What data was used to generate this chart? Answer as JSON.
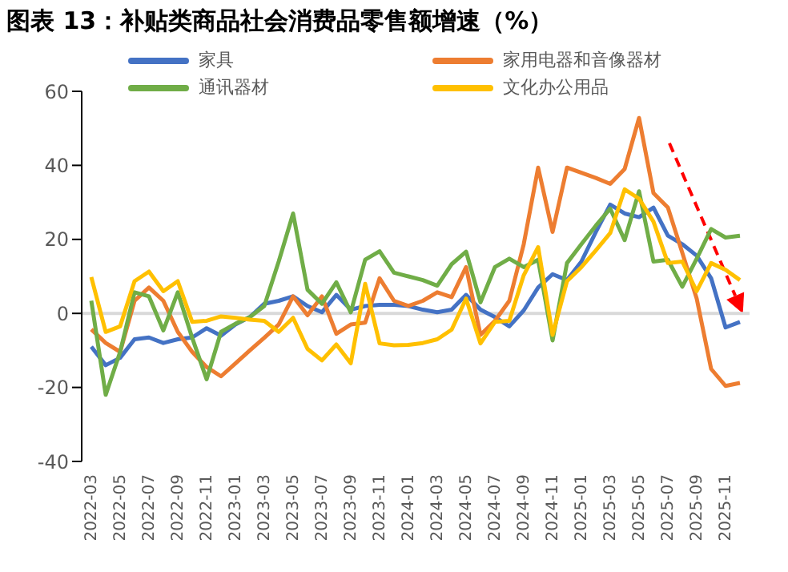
{
  "chart_data": {
    "type": "line",
    "title": "图表 13：补贴类商品社会消费品零售额增速（%）",
    "categories": [
      "2022-03",
      null,
      "2022-05",
      null,
      "2022-07",
      null,
      "2022-09",
      null,
      "2022-11",
      null,
      "2023-01",
      null,
      "2023-03",
      null,
      "2023-05",
      null,
      "2023-07",
      null,
      "2023-09",
      null,
      "2023-11",
      null,
      "2024-01",
      null,
      "2024-03",
      null,
      "2024-05",
      null,
      "2024-07",
      null,
      "2024-09",
      null,
      "2024-11",
      null,
      "2025-01",
      null,
      "2025-03",
      null,
      "2025-05",
      null,
      "2025-07",
      null,
      "2025-09",
      null,
      "2025-11",
      null
    ],
    "series": [
      {
        "name": "家具",
        "color": "#4472c4",
        "values": [
          -9,
          -14,
          -12,
          -7,
          -6.5,
          -8,
          -7,
          -6.5,
          -4,
          -6,
          -3,
          -1,
          2.6,
          3.4,
          4.6,
          2,
          0.3,
          5,
          1,
          2,
          2.3,
          2.3,
          2,
          1,
          0.3,
          1,
          5,
          1,
          -1,
          -3.5,
          0.8,
          7,
          10.6,
          9,
          14,
          22,
          29.4,
          27,
          26,
          28.6,
          21,
          18.7,
          15.6,
          9.5,
          -3.8,
          -2.3
        ]
      },
      {
        "name": "家用电器和音像器材",
        "color": "#ed7d31",
        "values": [
          -4.3,
          -8,
          -10.4,
          3.4,
          7,
          3.4,
          -5,
          -10.4,
          -14.5,
          -17,
          -13.5,
          -10,
          -6.6,
          -3,
          4.6,
          -0.5,
          4.6,
          -5.5,
          -3,
          -2.5,
          9.5,
          3.4,
          2,
          3.4,
          5.7,
          4.4,
          12.5,
          -5.8,
          -2,
          3.4,
          18.7,
          39.4,
          22,
          39.4,
          38,
          36.6,
          35,
          39,
          52.8,
          32.5,
          28.6,
          16.4,
          4,
          -15,
          -19.6,
          -18.8
        ]
      },
      {
        "name": "通讯器材",
        "color": "#70ad47",
        "values": [
          3.4,
          -22,
          -10.4,
          5.7,
          4.6,
          -4.6,
          5.7,
          -6.6,
          -17.8,
          -5,
          -2.8,
          -1,
          2,
          14,
          27,
          6.4,
          2.6,
          8.4,
          0.3,
          14.5,
          16.8,
          11,
          10,
          9,
          7.5,
          13.3,
          16.7,
          3,
          12.5,
          14.8,
          12.5,
          14.5,
          -7.3,
          13.6,
          18.7,
          23.7,
          28.3,
          19.8,
          33,
          14,
          14.5,
          7.2,
          14.8,
          22.8,
          20.5,
          21
        ]
      },
      {
        "name": "文化办公用品",
        "color": "#ffc000",
        "values": [
          9.8,
          -5,
          -3.5,
          8.7,
          11.3,
          6,
          8.7,
          -2.3,
          -2,
          -0.8,
          -1.2,
          -1.7,
          -2,
          -5,
          -1.2,
          -9.6,
          -12.7,
          -8.4,
          -13.5,
          8,
          -8.1,
          -8.6,
          -8.5,
          -8,
          -7,
          -4.4,
          4,
          -8.1,
          -2.3,
          -2,
          10.3,
          17.9,
          -5.8,
          8.7,
          12.5,
          17,
          21.7,
          33.5,
          31,
          24.8,
          13.6,
          14,
          6,
          13.6,
          11.8,
          9
        ]
      }
    ],
    "ylim": [
      -40,
      60
    ],
    "yticks": [
      -40,
      -20,
      0,
      20,
      40,
      60
    ],
    "grid": false,
    "legend": "top",
    "marker": "none",
    "line_style": "solid",
    "ref_lines": [
      {
        "axis": "y",
        "value": 0,
        "color": "#d9d9d9"
      }
    ]
  }
}
